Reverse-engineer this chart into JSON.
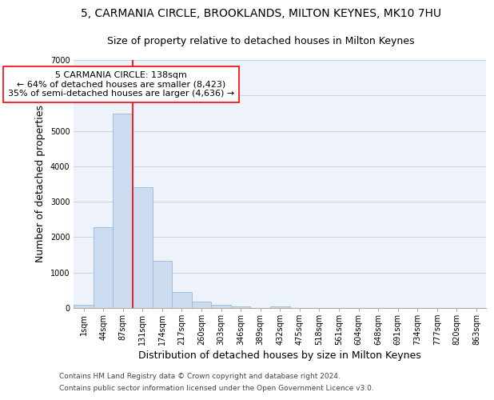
{
  "title_line1": "5, CARMANIA CIRCLE, BROOKLANDS, MILTON KEYNES, MK10 7HU",
  "title_line2": "Size of property relative to detached houses in Milton Keynes",
  "xlabel": "Distribution of detached houses by size in Milton Keynes",
  "ylabel": "Number of detached properties",
  "footnote1": "Contains HM Land Registry data © Crown copyright and database right 2024.",
  "footnote2": "Contains public sector information licensed under the Open Government Licence v3.0.",
  "bar_labels": [
    "1sqm",
    "44sqm",
    "87sqm",
    "131sqm",
    "174sqm",
    "217sqm",
    "260sqm",
    "303sqm",
    "346sqm",
    "389sqm",
    "432sqm",
    "475sqm",
    "518sqm",
    "561sqm",
    "604sqm",
    "648sqm",
    "691sqm",
    "734sqm",
    "777sqm",
    "820sqm",
    "863sqm"
  ],
  "bar_values": [
    100,
    2270,
    5480,
    3420,
    1330,
    460,
    175,
    90,
    50,
    10,
    50,
    0,
    0,
    0,
    0,
    0,
    0,
    0,
    0,
    0,
    0
  ],
  "bar_color": "#ccdcf0",
  "bar_edge_color": "#9ab8d8",
  "property_line_idx": 3,
  "property_label": "5 CARMANIA CIRCLE: 138sqm",
  "annotation_line1": "← 64% of detached houses are smaller (8,423)",
  "annotation_line2": "35% of semi-detached houses are larger (4,636) →",
  "ylim": [
    0,
    7000
  ],
  "yticks": [
    0,
    1000,
    2000,
    3000,
    4000,
    5000,
    6000,
    7000
  ],
  "grid_color": "#c8d4e8",
  "background_color": "#edf2fb",
  "title_fontsize": 10,
  "subtitle_fontsize": 9,
  "axis_label_fontsize": 9,
  "tick_fontsize": 7,
  "annotation_fontsize": 8,
  "footnote_fontsize": 6.5
}
